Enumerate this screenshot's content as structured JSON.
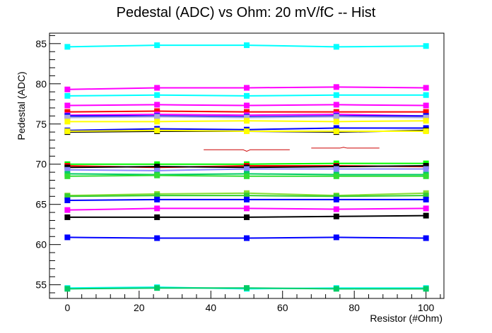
{
  "chart_data": {
    "type": "line",
    "title": "Pedestal (ADC) vs Ohm: 20 mV/fC -- Hist",
    "xlabel": "Resistor (#Ohm)",
    "ylabel": "Pedestal (ADC)",
    "xlim": [
      -5,
      105
    ],
    "ylim": [
      53.3,
      86.3
    ],
    "x_ticks": [
      0,
      20,
      40,
      60,
      80,
      100
    ],
    "y_ticks": [
      55,
      60,
      65,
      70,
      75,
      80,
      85
    ],
    "grid": false,
    "x": [
      0,
      25,
      50,
      75,
      100
    ],
    "series": [
      {
        "color": "#00ffff",
        "values": [
          84.6,
          84.8,
          84.8,
          84.6,
          84.7
        ]
      },
      {
        "color": "#ff00ff",
        "values": [
          79.3,
          79.5,
          79.5,
          79.6,
          79.5
        ]
      },
      {
        "color": "#00ffff",
        "values": [
          78.5,
          78.6,
          78.5,
          78.6,
          78.6
        ]
      },
      {
        "color": "#ff00ff",
        "values": [
          77.3,
          77.4,
          77.3,
          77.4,
          77.3
        ]
      },
      {
        "color": "#ff0000",
        "values": [
          76.5,
          76.6,
          76.5,
          76.5,
          76.5
        ]
      },
      {
        "color": "#ff00ff",
        "values": [
          76.1,
          76.2,
          76.1,
          76.2,
          76.0
        ]
      },
      {
        "color": "#0000ff",
        "values": [
          76.0,
          76.0,
          75.9,
          76.0,
          76.0
        ]
      },
      {
        "color": "#aaaadd",
        "values": [
          75.8,
          75.9,
          75.8,
          75.9,
          75.8
        ]
      },
      {
        "color": "#ffff00",
        "values": [
          75.3,
          75.3,
          75.4,
          75.3,
          75.4
        ]
      },
      {
        "color": "#0000ff",
        "values": [
          74.2,
          74.4,
          74.3,
          74.5,
          74.5
        ]
      },
      {
        "color": "#000000",
        "values": [
          74.0,
          74.1,
          74.1,
          74.0,
          74.2
        ]
      },
      {
        "color": "#ffff00",
        "values": [
          74.1,
          74.2,
          74.1,
          74.1,
          74.1
        ]
      },
      {
        "color": "#00ff00",
        "values": [
          70.0,
          70.0,
          70.0,
          70.1,
          70.1
        ]
      },
      {
        "color": "#ff0000",
        "values": [
          69.8,
          69.6,
          69.8,
          69.8,
          69.7
        ]
      },
      {
        "color": "#000000",
        "values": [
          69.6,
          69.7,
          69.6,
          69.7,
          69.8
        ]
      },
      {
        "color": "#8888ff",
        "values": [
          69.3,
          69.2,
          69.4,
          69.4,
          69.4
        ]
      },
      {
        "color": "#00cc66",
        "values": [
          68.8,
          68.7,
          68.8,
          68.7,
          68.7
        ]
      },
      {
        "color": "#33dd33",
        "values": [
          68.5,
          68.6,
          68.5,
          68.5,
          68.5
        ]
      },
      {
        "color": "#88dd33",
        "values": [
          66.1,
          66.3,
          66.4,
          66.1,
          66.4
        ]
      },
      {
        "color": "#33cc33",
        "values": [
          66.0,
          66.1,
          66.1,
          66.0,
          66.1
        ]
      },
      {
        "color": "#0000ff",
        "values": [
          65.5,
          65.6,
          65.6,
          65.6,
          65.6
        ]
      },
      {
        "color": "#ff00ff",
        "values": [
          64.3,
          64.5,
          64.5,
          64.4,
          64.5
        ]
      },
      {
        "color": "#000000",
        "values": [
          63.4,
          63.4,
          63.4,
          63.5,
          63.6
        ]
      },
      {
        "color": "#0000ff",
        "values": [
          60.9,
          60.8,
          60.8,
          60.9,
          60.8
        ]
      },
      {
        "color": "#00ffff",
        "values": [
          54.6,
          54.7,
          54.5,
          54.6,
          54.6
        ]
      },
      {
        "color": "#00cc66",
        "values": [
          54.5,
          54.6,
          54.6,
          54.5,
          54.5
        ]
      }
    ],
    "fragments": [
      {
        "color": "#cc0000",
        "points": [
          [
            38,
            71.8
          ],
          [
            49,
            71.8
          ],
          [
            50,
            71.6
          ],
          [
            51,
            71.8
          ],
          [
            62,
            71.8
          ]
        ]
      },
      {
        "color": "#cc0000",
        "points": [
          [
            68,
            72.0
          ],
          [
            76,
            72.0
          ],
          [
            77,
            72.1
          ],
          [
            78,
            72.0
          ],
          [
            87,
            72.0
          ]
        ]
      }
    ]
  }
}
